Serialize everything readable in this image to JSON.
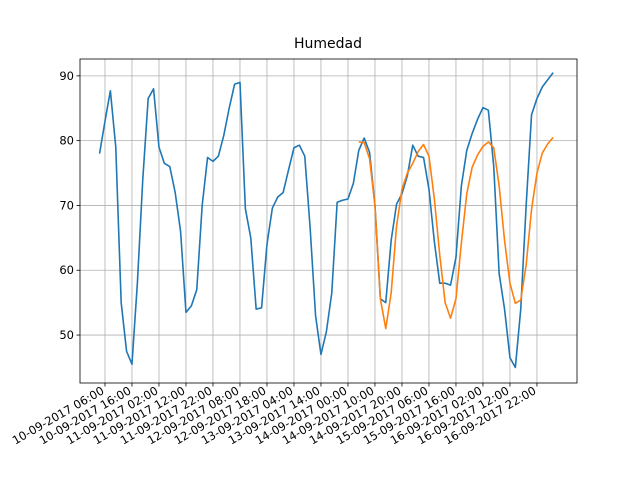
{
  "chart_data": {
    "type": "line",
    "title": "Humedad",
    "x": [
      "10-09-2017 04:00",
      "10-09-2017 06:00",
      "10-09-2017 08:00",
      "10-09-2017 10:00",
      "10-09-2017 12:00",
      "10-09-2017 14:00",
      "10-09-2017 16:00",
      "10-09-2017 18:00",
      "10-09-2017 20:00",
      "10-09-2017 22:00",
      "11-09-2017 00:00",
      "11-09-2017 02:00",
      "11-09-2017 04:00",
      "11-09-2017 06:00",
      "11-09-2017 08:00",
      "11-09-2017 10:00",
      "11-09-2017 12:00",
      "11-09-2017 14:00",
      "11-09-2017 16:00",
      "11-09-2017 18:00",
      "11-09-2017 20:00",
      "11-09-2017 22:00",
      "12-09-2017 00:00",
      "12-09-2017 02:00",
      "12-09-2017 04:00",
      "12-09-2017 06:00",
      "12-09-2017 08:00",
      "12-09-2017 10:00",
      "12-09-2017 12:00",
      "12-09-2017 14:00",
      "12-09-2017 16:00",
      "12-09-2017 18:00",
      "12-09-2017 20:00",
      "12-09-2017 22:00",
      "13-09-2017 00:00",
      "13-09-2017 02:00",
      "13-09-2017 04:00",
      "13-09-2017 06:00",
      "13-09-2017 08:00",
      "13-09-2017 10:00",
      "13-09-2017 12:00",
      "13-09-2017 14:00",
      "13-09-2017 16:00",
      "13-09-2017 18:00",
      "13-09-2017 20:00",
      "13-09-2017 22:00",
      "14-09-2017 00:00",
      "14-09-2017 02:00",
      "14-09-2017 04:00",
      "14-09-2017 06:00",
      "14-09-2017 08:00",
      "14-09-2017 10:00",
      "14-09-2017 12:00",
      "14-09-2017 14:00",
      "14-09-2017 16:00",
      "14-09-2017 18:00",
      "14-09-2017 20:00",
      "14-09-2017 22:00",
      "15-09-2017 00:00",
      "15-09-2017 02:00",
      "15-09-2017 04:00",
      "15-09-2017 06:00",
      "15-09-2017 08:00",
      "15-09-2017 10:00",
      "15-09-2017 12:00",
      "15-09-2017 14:00",
      "15-09-2017 16:00",
      "15-09-2017 18:00",
      "15-09-2017 20:00",
      "15-09-2017 22:00",
      "16-09-2017 00:00",
      "16-09-2017 02:00",
      "16-09-2017 04:00",
      "16-09-2017 06:00",
      "16-09-2017 08:00",
      "16-09-2017 10:00",
      "16-09-2017 12:00",
      "16-09-2017 14:00",
      "16-09-2017 16:00",
      "16-09-2017 18:00",
      "16-09-2017 20:00",
      "16-09-2017 22:00",
      "17-09-2017 00:00",
      "17-09-2017 02:00",
      "17-09-2017 04:00"
    ],
    "series": [
      {
        "color": "#1f77b4",
        "values": [
          78,
          83,
          87.7,
          79,
          55,
          47.5,
          45.5,
          58,
          74,
          86.5,
          88,
          79,
          76.5,
          76,
          72,
          66,
          53.5,
          54.5,
          57,
          70,
          77.4,
          76.8,
          77.6,
          80.8,
          85,
          88.7,
          89,
          69.5,
          65,
          54,
          54.2,
          64,
          69.6,
          71.3,
          72,
          75.5,
          78.9,
          79.3,
          77.6,
          66.5,
          53,
          47,
          50.5,
          56.5,
          70.5,
          70.8,
          71,
          73.4,
          78.5,
          80.4,
          78.2,
          70,
          55.6,
          55,
          64.6,
          70.2,
          71.8,
          74.6,
          79.3,
          77.6,
          77.4,
          72.5,
          64.4,
          58,
          58,
          57.7,
          62,
          73,
          78.5,
          81.1,
          83.3,
          85.1,
          84.7,
          76,
          59.5,
          54,
          46.5,
          45,
          54,
          70,
          84,
          86.5,
          88.3,
          89.4,
          90.5
        ]
      },
      {
        "color": "#ff7f0e",
        "values": [
          null,
          null,
          null,
          null,
          null,
          null,
          null,
          null,
          null,
          null,
          null,
          null,
          null,
          null,
          null,
          null,
          null,
          null,
          null,
          null,
          null,
          null,
          null,
          null,
          null,
          null,
          null,
          null,
          null,
          null,
          null,
          null,
          null,
          null,
          null,
          null,
          null,
          null,
          null,
          null,
          null,
          null,
          null,
          null,
          null,
          null,
          null,
          null,
          79.8,
          79.7,
          77.2,
          70,
          55.6,
          51,
          56.5,
          66.8,
          72.5,
          75,
          76.5,
          78.3,
          79.4,
          77.6,
          71,
          62.3,
          55,
          52.6,
          55.6,
          64.2,
          71.8,
          75.9,
          77.8,
          79.1,
          79.8,
          78.9,
          73,
          64.6,
          58,
          54.9,
          55.4,
          60.8,
          69.4,
          75,
          78.1,
          79.5,
          80.5
        ]
      }
    ],
    "xlim": [
      "09-09-2017 20:45",
      "17-09-2017 12:50"
    ],
    "xticks": [
      "10-09-2017 06:00",
      "10-09-2017 16:00",
      "11-09-2017 02:00",
      "11-09-2017 12:00",
      "11-09-2017 22:00",
      "12-09-2017 08:00",
      "12-09-2017 18:00",
      "13-09-2017 04:00",
      "13-09-2017 14:00",
      "14-09-2017 00:00",
      "14-09-2017 10:00",
      "14-09-2017 20:00",
      "15-09-2017 06:00",
      "15-09-2017 16:00",
      "16-09-2017 02:00",
      "16-09-2017 12:00",
      "16-09-2017 22:00"
    ],
    "ylim": [
      42.6,
      92.6
    ],
    "yticks": [
      50,
      60,
      70,
      80,
      90
    ],
    "grid": true
  }
}
